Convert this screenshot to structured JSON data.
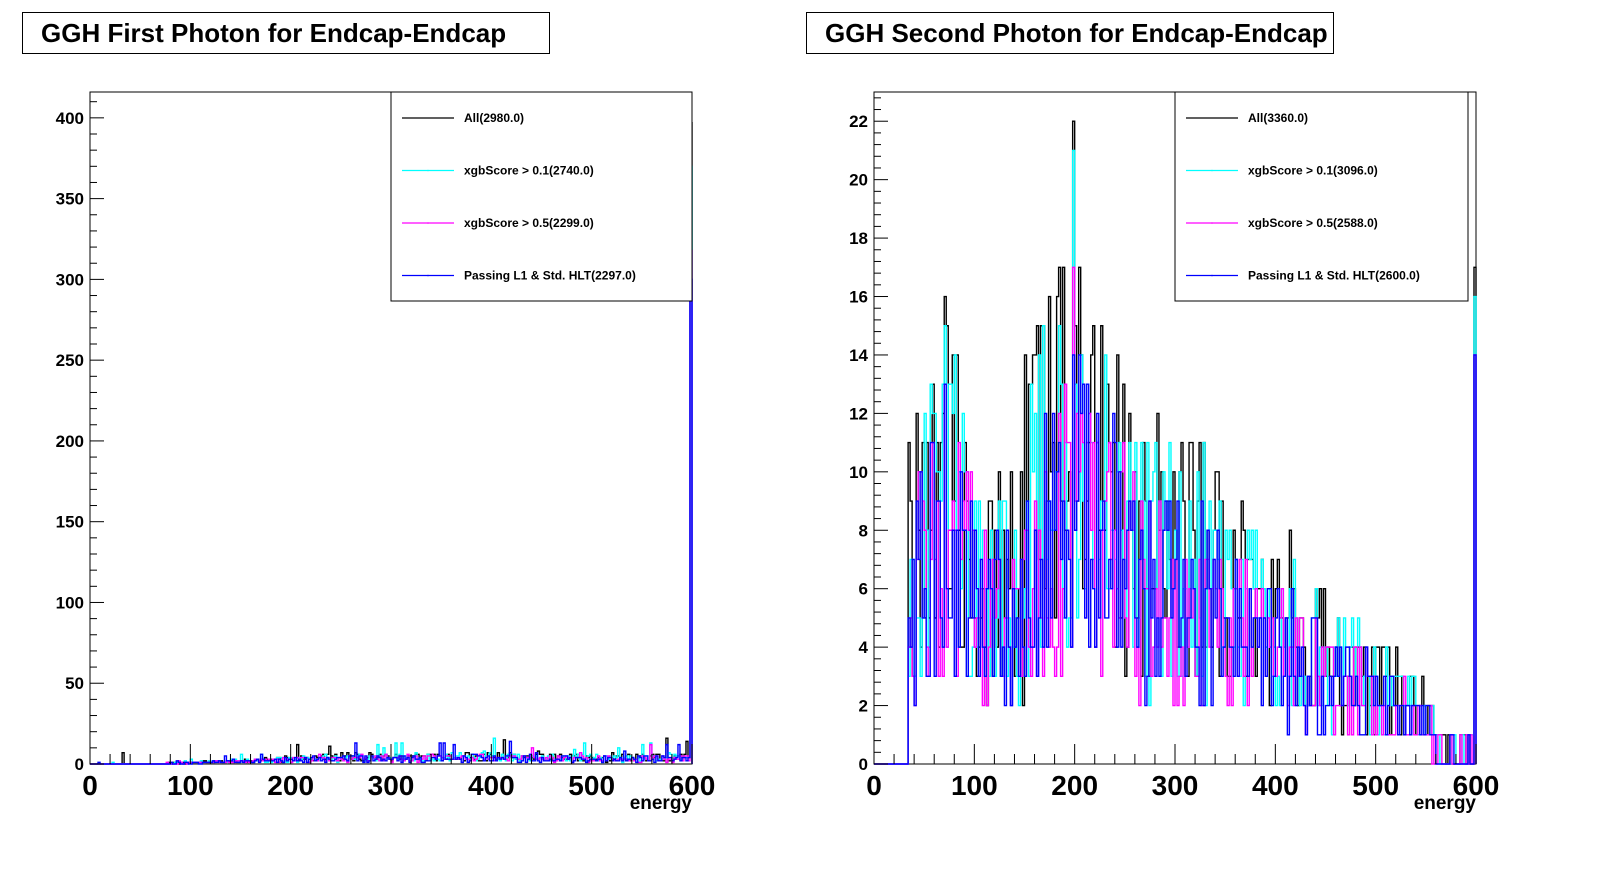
{
  "chart_data": [
    {
      "type": "histogram",
      "title": "GGH First Photon for Endcap-Endcap",
      "xlabel": "energy",
      "ylabel": "",
      "xlim": [
        0,
        600
      ],
      "ylim": [
        0,
        416
      ],
      "xticks": [
        0,
        100,
        200,
        300,
        400,
        500,
        600
      ],
      "yticks": [
        0,
        50,
        100,
        150,
        200,
        250,
        300,
        350,
        400
      ],
      "legend_position": "top-right",
      "series": [
        {
          "name": "All(2980.0)",
          "color": "#000000",
          "level": 4,
          "overflow_bin": 397
        },
        {
          "name": "xgbScore > 0.1(2740.0)",
          "color": "#00ffff",
          "level": 3.7,
          "overflow_bin": 370
        },
        {
          "name": "xgbScore > 0.5(2299.0)",
          "color": "#ff00ff",
          "level": 3.2,
          "overflow_bin": 318
        },
        {
          "name": "Passing L1 & Std. HLT(2297.0)",
          "color": "#0000ff",
          "level": 3.1,
          "overflow_bin": 300
        }
      ]
    },
    {
      "type": "histogram",
      "title": "GGH Second Photon for Endcap-Endcap",
      "xlabel": "energy",
      "ylabel": "",
      "xlim": [
        0,
        600
      ],
      "ylim": [
        0,
        23
      ],
      "xticks": [
        0,
        100,
        200,
        300,
        400,
        500,
        600
      ],
      "yticks": [
        0,
        2,
        4,
        6,
        8,
        10,
        12,
        14,
        16,
        18,
        20,
        22
      ],
      "legend_position": "top-right",
      "peaks": {
        "All": 22,
        "xgbScore > 0.1": 21,
        "xgbScore > 0.5": 17,
        "Passing L1 & Std. HLT": 14
      },
      "series": [
        {
          "name": "All(3360.0)",
          "color": "#000000",
          "scale": 1.0,
          "overflow_bin": 17
        },
        {
          "name": "xgbScore > 0.1(3096.0)",
          "color": "#00ffff",
          "scale": 0.92,
          "overflow_bin": 16
        },
        {
          "name": "xgbScore > 0.5(2588.0)",
          "color": "#ff00ff",
          "scale": 0.77,
          "overflow_bin": 14
        },
        {
          "name": "Passing L1 & Std. HLT(2600.0)",
          "color": "#0000ff",
          "scale": 0.77,
          "overflow_bin": 14
        }
      ]
    }
  ]
}
